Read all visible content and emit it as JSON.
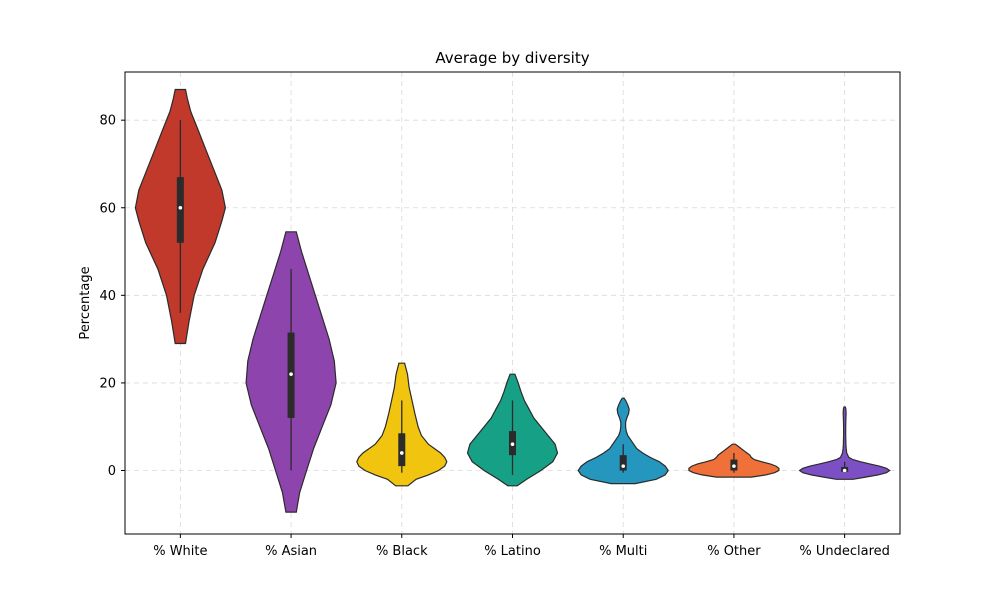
{
  "chart_data": {
    "type": "violin",
    "title": "Average by diversity",
    "xlabel": "",
    "ylabel": "Percentage",
    "ylim": [
      -14.5,
      91
    ],
    "yticks": [
      0,
      20,
      40,
      60,
      80
    ],
    "grid": true,
    "categories": [
      "% White",
      "% Asian",
      "% Black",
      "% Latino",
      "% Multi",
      "% Other",
      "% Undeclared"
    ],
    "colors": [
      "#c0392b",
      "#8e44ad",
      "#f1c40f",
      "#16a085",
      "#2596be",
      "#f0703a",
      "#7d4fc4"
    ],
    "series": [
      {
        "category": "% White",
        "min": 29,
        "max": 87,
        "q1": 52,
        "median": 60,
        "q3": 67,
        "whisker_low": 36,
        "whisker_high": 80,
        "density": [
          [
            29,
            0.3
          ],
          [
            34,
            0.5
          ],
          [
            40,
            0.8
          ],
          [
            46,
            1.3
          ],
          [
            52,
            2.0
          ],
          [
            57,
            2.4
          ],
          [
            60,
            2.6
          ],
          [
            64,
            2.4
          ],
          [
            68,
            2.0
          ],
          [
            73,
            1.5
          ],
          [
            78,
            1.0
          ],
          [
            82,
            0.6
          ],
          [
            85,
            0.4
          ],
          [
            87,
            0.3
          ]
        ]
      },
      {
        "category": "% Asian",
        "min": -9.5,
        "max": 54.5,
        "q1": 12,
        "median": 22,
        "q3": 31.5,
        "whisker_low": 0,
        "whisker_high": 46,
        "density": [
          [
            -9.5,
            0.3
          ],
          [
            -5,
            0.5
          ],
          [
            0,
            0.9
          ],
          [
            5,
            1.3
          ],
          [
            10,
            1.8
          ],
          [
            15,
            2.3
          ],
          [
            20,
            2.6
          ],
          [
            25,
            2.5
          ],
          [
            30,
            2.2
          ],
          [
            35,
            1.8
          ],
          [
            40,
            1.4
          ],
          [
            45,
            1.0
          ],
          [
            50,
            0.6
          ],
          [
            54.5,
            0.3
          ]
        ]
      },
      {
        "category": "% Black",
        "min": -3.5,
        "max": 24.5,
        "q1": 1,
        "median": 4,
        "q3": 8.5,
        "whisker_low": -0.5,
        "whisker_high": 16,
        "density": [
          [
            -3.5,
            1.5
          ],
          [
            -2,
            3.5
          ],
          [
            -1,
            6.5
          ],
          [
            0,
            9
          ],
          [
            1,
            10.5
          ],
          [
            2,
            11
          ],
          [
            3,
            10.5
          ],
          [
            4,
            9.5
          ],
          [
            5,
            8
          ],
          [
            6,
            6.5
          ],
          [
            8,
            4.8
          ],
          [
            10,
            4
          ],
          [
            13,
            3.2
          ],
          [
            16,
            2.5
          ],
          [
            19,
            1.8
          ],
          [
            22,
            1.4
          ],
          [
            24.5,
            0.7
          ]
        ]
      },
      {
        "category": "% Latino",
        "min": -3.5,
        "max": 22,
        "q1": 3.5,
        "median": 6,
        "q3": 9,
        "whisker_low": -1,
        "whisker_high": 16,
        "density": [
          [
            -3.5,
            1
          ],
          [
            -2,
            3
          ],
          [
            0,
            6
          ],
          [
            2,
            8.5
          ],
          [
            4,
            9.5
          ],
          [
            6,
            9
          ],
          [
            8,
            7.5
          ],
          [
            10,
            6
          ],
          [
            12,
            4.5
          ],
          [
            14,
            3.5
          ],
          [
            16,
            2.5
          ],
          [
            18,
            1.8
          ],
          [
            20,
            1.2
          ],
          [
            22,
            0.5
          ]
        ]
      },
      {
        "category": "% Multi",
        "min": -3,
        "max": 16.5,
        "q1": 0,
        "median": 1,
        "q3": 3.5,
        "whisker_low": -0.5,
        "whisker_high": 6,
        "density": [
          [
            -3,
            4
          ],
          [
            -2,
            11
          ],
          [
            -1,
            14
          ],
          [
            0,
            15
          ],
          [
            1,
            14
          ],
          [
            2,
            12
          ],
          [
            3,
            9
          ],
          [
            4,
            6.5
          ],
          [
            5,
            4.5
          ],
          [
            6,
            3.5
          ],
          [
            7,
            2.5
          ],
          [
            8,
            1.5
          ],
          [
            9,
            1
          ],
          [
            10,
            0.8
          ],
          [
            11,
            0.8
          ],
          [
            12,
            1.2
          ],
          [
            13,
            1.8
          ],
          [
            14,
            2
          ],
          [
            15,
            1.5
          ],
          [
            16,
            0.8
          ],
          [
            16.5,
            0.3
          ]
        ]
      },
      {
        "category": "% Other",
        "min": -1.5,
        "max": 6,
        "q1": 0,
        "median": 1,
        "q3": 2.5,
        "whisker_low": -0.5,
        "whisker_high": 4,
        "density": [
          [
            -1.5,
            12
          ],
          [
            -1,
            22
          ],
          [
            -0.5,
            28
          ],
          [
            0,
            31
          ],
          [
            0.5,
            31
          ],
          [
            1,
            29
          ],
          [
            1.5,
            25
          ],
          [
            2,
            19
          ],
          [
            2.5,
            14
          ],
          [
            3,
            12
          ],
          [
            3.5,
            11
          ],
          [
            4,
            9
          ],
          [
            4.5,
            7
          ],
          [
            5,
            5
          ],
          [
            5.5,
            3
          ],
          [
            6,
            1
          ]
        ]
      },
      {
        "category": "% Undeclared",
        "min": -2,
        "max": 14.5,
        "q1": -0.3,
        "median": 0,
        "q3": 0.8,
        "whisker_low": -0.5,
        "whisker_high": 2,
        "density": [
          [
            -2,
            8
          ],
          [
            -1.5,
            20
          ],
          [
            -1,
            32
          ],
          [
            -0.5,
            40
          ],
          [
            0,
            43
          ],
          [
            0.5,
            40
          ],
          [
            1,
            33
          ],
          [
            1.5,
            24
          ],
          [
            2,
            15
          ],
          [
            2.5,
            8
          ],
          [
            3,
            4
          ],
          [
            4,
            2
          ],
          [
            5,
            1.5
          ],
          [
            6,
            1.2
          ],
          [
            8,
            1
          ],
          [
            10,
            1
          ],
          [
            12,
            1.2
          ],
          [
            13,
            1.4
          ],
          [
            14,
            1.2
          ],
          [
            14.5,
            0.6
          ]
        ]
      }
    ]
  }
}
